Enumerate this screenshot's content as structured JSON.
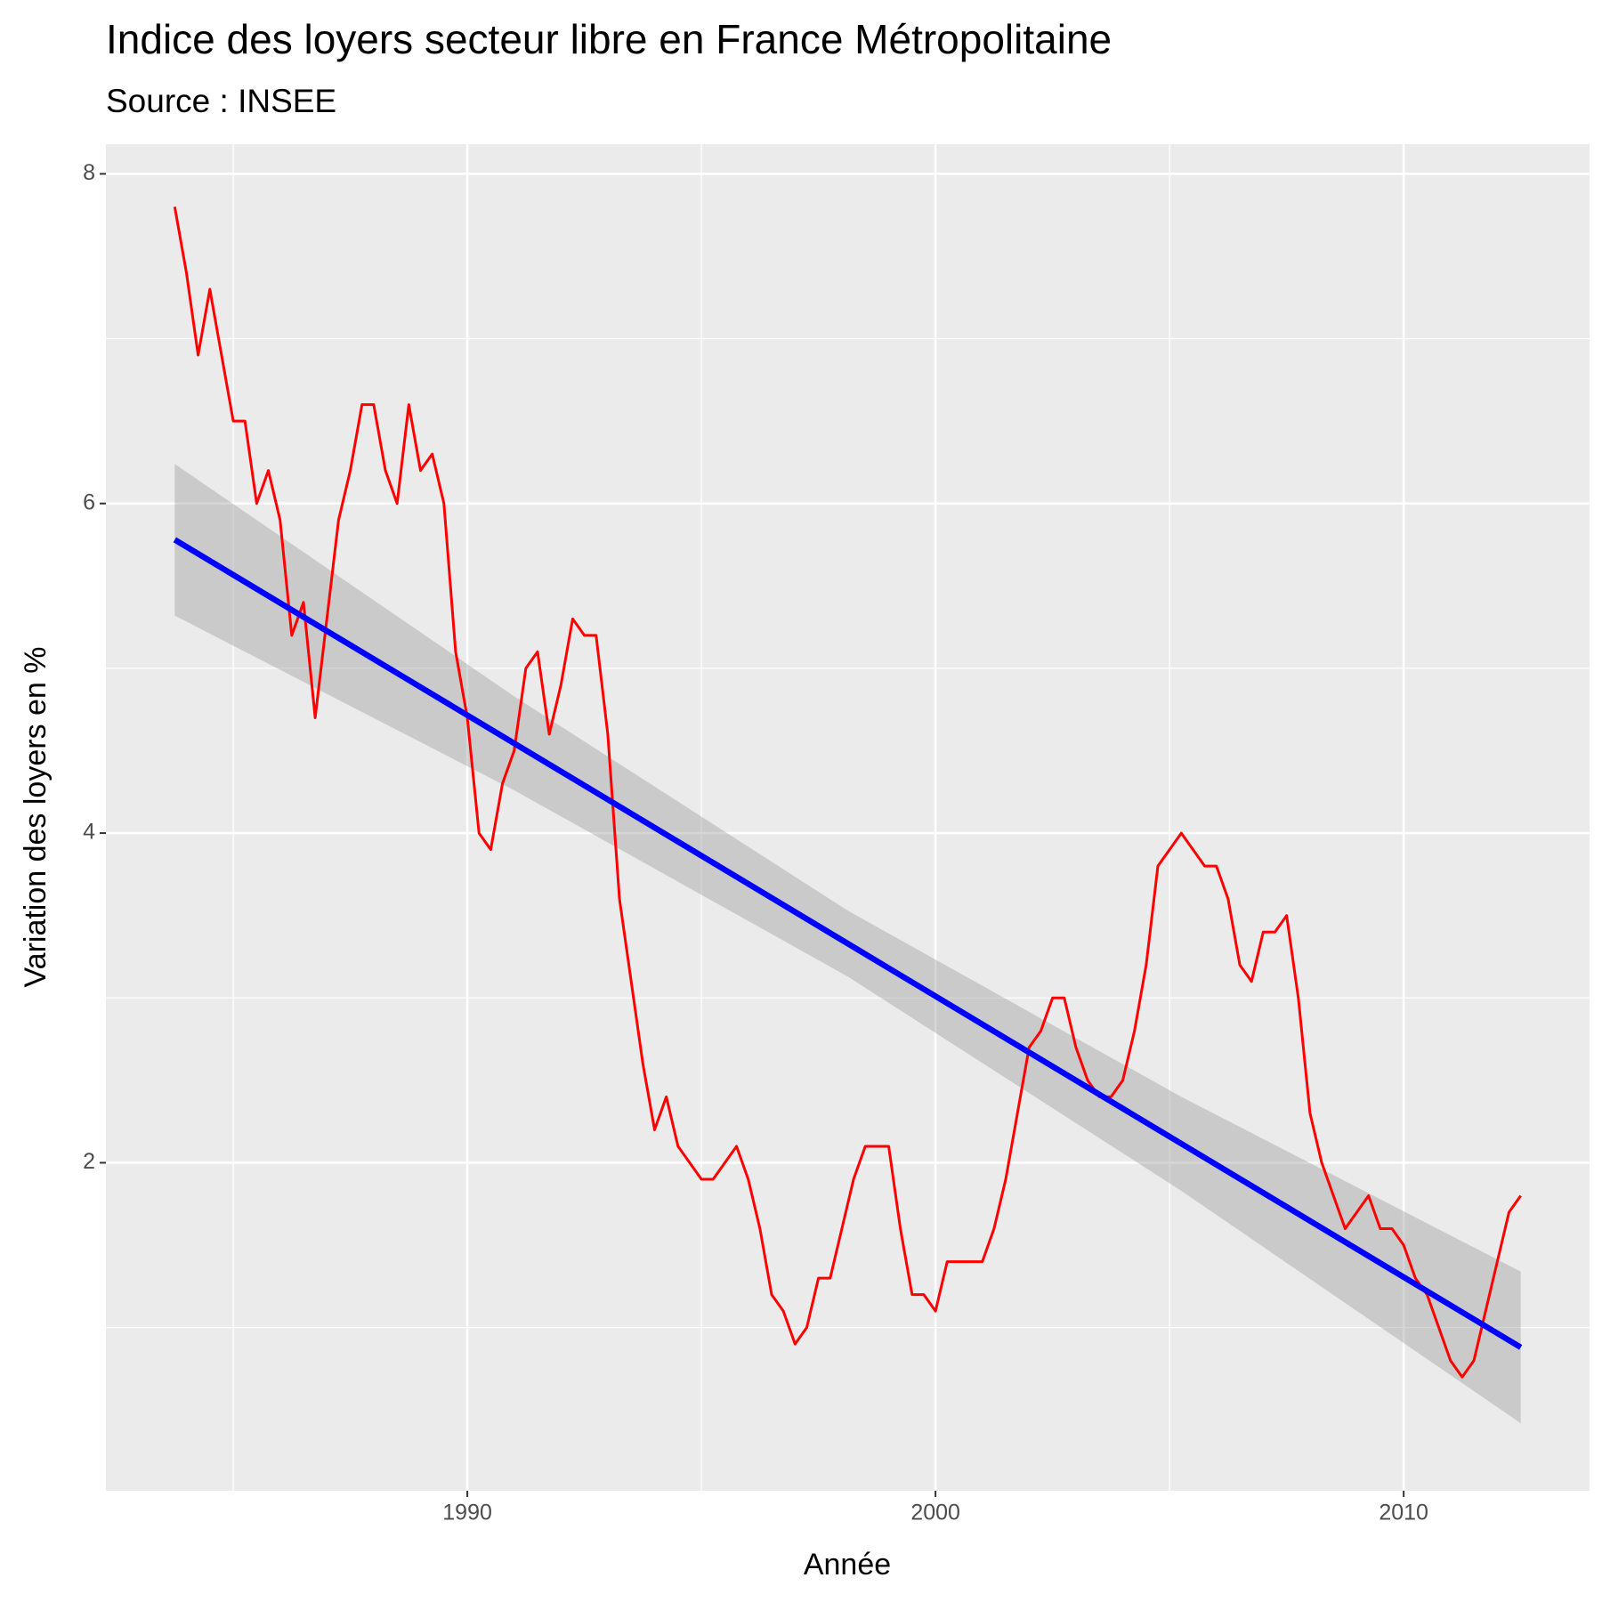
{
  "chart_data": {
    "type": "line",
    "title": "Indice des loyers secteur libre en France Métropolitaine",
    "subtitle": "Source : INSEE",
    "x_label": "Année",
    "y_label": "Variation des loyers en %",
    "xlim": [
      1982.28,
      2013.97
    ],
    "ylim": [
      0.01,
      8.18
    ],
    "xticks": [
      1990,
      2000,
      2010
    ],
    "yticks": [
      2,
      4,
      6,
      8
    ],
    "grid": true,
    "color": "#ff0000",
    "x": [
      1983.75,
      1984,
      1984.25,
      1984.5,
      1984.75,
      1985,
      1985.25,
      1985.5,
      1985.75,
      1986,
      1986.25,
      1986.5,
      1986.75,
      1987,
      1987.25,
      1987.5,
      1987.75,
      1988,
      1988.25,
      1988.5,
      1988.75,
      1989,
      1989.25,
      1989.5,
      1989.75,
      1990,
      1990.25,
      1990.5,
      1990.75,
      1991,
      1991.25,
      1991.5,
      1991.75,
      1992,
      1992.25,
      1992.5,
      1992.75,
      1993,
      1993.25,
      1993.5,
      1993.75,
      1994,
      1994.25,
      1994.5,
      1994.75,
      1995,
      1995.25,
      1995.5,
      1995.75,
      1996,
      1996.25,
      1996.5,
      1996.75,
      1997,
      1997.25,
      1997.5,
      1997.75,
      1998,
      1998.25,
      1998.5,
      1998.75,
      1999,
      1999.25,
      1999.5,
      1999.75,
      2000,
      2000.25,
      2000.5,
      2000.75,
      2001,
      2001.25,
      2001.5,
      2001.75,
      2002,
      2002.25,
      2002.5,
      2002.75,
      2003,
      2003.25,
      2003.5,
      2003.75,
      2004,
      2004.25,
      2004.5,
      2004.75,
      2005,
      2005.25,
      2005.5,
      2005.75,
      2006,
      2006.25,
      2006.5,
      2006.75,
      2007,
      2007.25,
      2007.5,
      2007.75,
      2008,
      2008.25,
      2008.5,
      2008.75,
      2009,
      2009.25,
      2009.5,
      2009.75,
      2010,
      2010.25,
      2010.5,
      2010.75,
      2011,
      2011.25,
      2011.5,
      2011.75,
      2012,
      2012.25,
      2012.5
    ],
    "values": [
      7.8,
      7.4,
      6.9,
      7.3,
      6.9,
      6.5,
      6.5,
      6.0,
      6.2,
      5.9,
      5.2,
      5.4,
      4.7,
      5.3,
      5.9,
      6.2,
      6.6,
      6.6,
      6.2,
      6.0,
      6.6,
      6.2,
      6.3,
      6.0,
      5.1,
      4.7,
      4.0,
      3.9,
      4.3,
      4.5,
      5.0,
      5.1,
      4.6,
      4.9,
      5.3,
      5.2,
      5.2,
      4.6,
      3.6,
      3.1,
      2.6,
      2.2,
      2.4,
      2.1,
      2.0,
      1.9,
      1.9,
      2.0,
      2.1,
      1.9,
      1.6,
      1.2,
      1.1,
      0.9,
      1.0,
      1.3,
      1.3,
      1.6,
      1.9,
      2.1,
      2.1,
      2.1,
      1.6,
      1.2,
      1.2,
      1.1,
      1.4,
      1.4,
      1.4,
      1.4,
      1.6,
      1.9,
      2.3,
      2.7,
      2.8,
      3.0,
      3.0,
      2.7,
      2.5,
      2.4,
      2.4,
      2.5,
      2.8,
      3.2,
      3.8,
      3.9,
      4.0,
      3.9,
      3.8,
      3.8,
      3.6,
      3.2,
      3.1,
      3.4,
      3.4,
      3.5,
      3.0,
      2.3,
      2.0,
      1.8,
      1.6,
      1.7,
      1.8,
      1.6,
      1.6,
      1.5,
      1.3,
      1.2,
      1.0,
      0.8,
      0.7,
      0.8,
      1.1,
      1.4,
      1.7,
      1.8
    ],
    "smooth": {
      "color": "#0000ff",
      "fill": "#999999",
      "x": [
        1983.75,
        1991,
        1998.125,
        2005.25,
        2012.5
      ],
      "values": [
        5.78,
        4.545,
        3.33,
        2.116,
        0.88
      ],
      "lower": [
        5.32,
        4.26,
        3.13,
        1.83,
        0.42
      ],
      "upper": [
        6.24,
        4.83,
        3.53,
        2.4,
        1.34
      ]
    }
  }
}
